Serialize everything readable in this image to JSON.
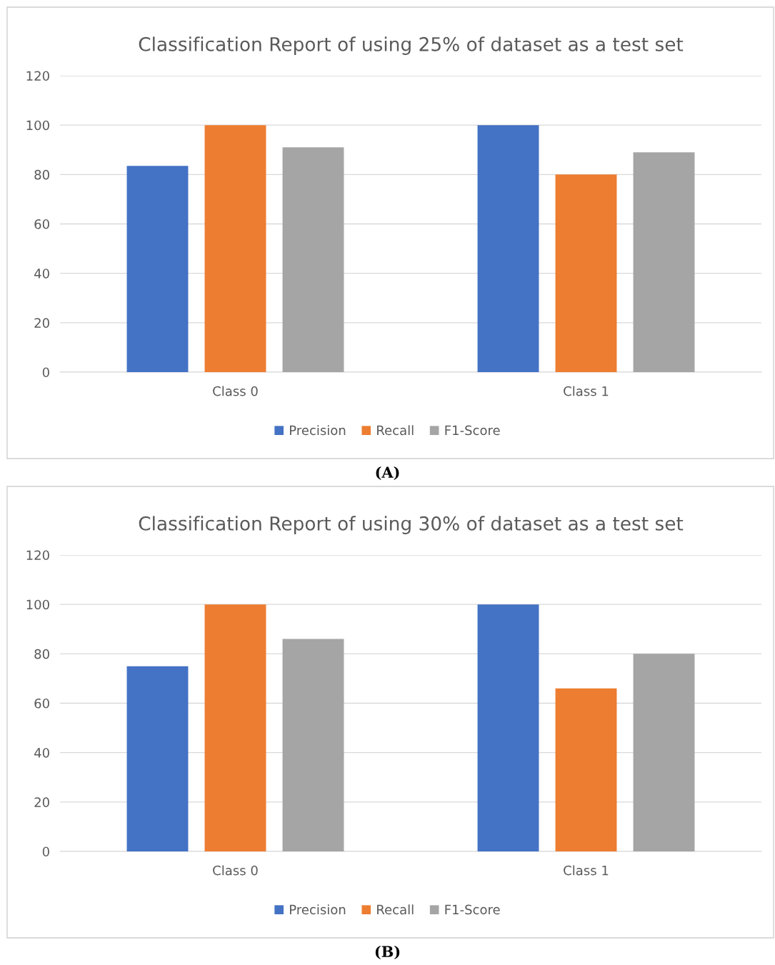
{
  "chart_data": [
    {
      "type": "bar",
      "title": "Classification Report of using 25% of dataset as a test set",
      "categories": [
        "Class 0",
        "Class 1"
      ],
      "series": [
        {
          "name": "Precision",
          "color": "#4472c4",
          "values": [
            83.5,
            100
          ]
        },
        {
          "name": "Recall",
          "color": "#ed7d31",
          "values": [
            100,
            80
          ]
        },
        {
          "name": "F1-Score",
          "color": "#a5a5a5",
          "values": [
            91,
            89
          ]
        }
      ],
      "ylim": [
        0,
        120
      ],
      "yticks": [
        0,
        20,
        40,
        60,
        80,
        100,
        120
      ],
      "grid": "y",
      "legend": "bottom",
      "annotations": [
        "(A)"
      ]
    },
    {
      "type": "bar",
      "title": "Classification Report of using 30% of dataset as a test set",
      "categories": [
        "Class 0",
        "Class 1"
      ],
      "series": [
        {
          "name": "Precision",
          "color": "#4472c4",
          "values": [
            75,
            100
          ]
        },
        {
          "name": "Recall",
          "color": "#ed7d31",
          "values": [
            100,
            66
          ]
        },
        {
          "name": "F1-Score",
          "color": "#a5a5a5",
          "values": [
            86,
            80
          ]
        }
      ],
      "ylim": [
        0,
        120
      ],
      "yticks": [
        0,
        20,
        40,
        60,
        80,
        100,
        120
      ],
      "grid": "y",
      "legend": "bottom",
      "annotations": [
        "(B)"
      ]
    }
  ]
}
